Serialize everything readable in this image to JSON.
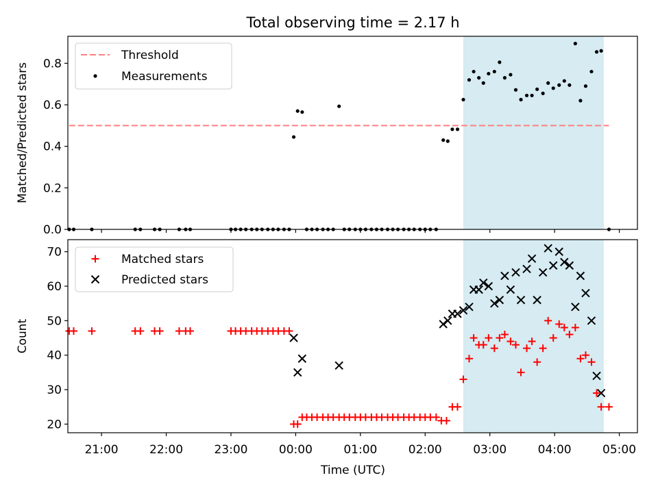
{
  "title": "Total observing time = 2.17 h",
  "xlabel": "Time (UTC)",
  "x_ticks": [
    {
      "label": "21:00",
      "hour": 21
    },
    {
      "label": "22:00",
      "hour": 22
    },
    {
      "label": "23:00",
      "hour": 23
    },
    {
      "label": "00:00",
      "hour": 24
    },
    {
      "label": "01:00",
      "hour": 25
    },
    {
      "label": "02:00",
      "hour": 26
    },
    {
      "label": "03:00",
      "hour": 27
    },
    {
      "label": "04:00",
      "hour": 28
    },
    {
      "label": "05:00",
      "hour": 29
    }
  ],
  "x_range_hours": [
    20.48,
    29.28
  ],
  "observing_window_hours": [
    26.59,
    28.76
  ],
  "highlight_color": "#add8e6",
  "chart_data": [
    {
      "type": "scatter",
      "ylabel": "Matched/Predicted stars",
      "ylim": [
        0,
        0.93
      ],
      "yticks": [
        "0.0",
        "0.2",
        "0.4",
        "0.6",
        "0.8"
      ],
      "legend_position": "upper-left",
      "threshold": {
        "name": "Threshold",
        "value": 0.5,
        "x_range": [
          20.5,
          28.84
        ],
        "color": "#ff7f7f",
        "style": "dashed"
      },
      "series": [
        {
          "name": "Measurements",
          "color": "#000000",
          "marker": "dot",
          "points": [
            [
              20.5,
              0
            ],
            [
              20.57,
              0
            ],
            [
              20.85,
              0
            ],
            [
              21.52,
              0
            ],
            [
              21.6,
              0
            ],
            [
              21.82,
              0
            ],
            [
              21.9,
              0
            ],
            [
              22.2,
              0
            ],
            [
              22.3,
              0
            ],
            [
              22.37,
              0
            ],
            [
              23.0,
              0
            ],
            [
              23.07,
              0
            ],
            [
              23.15,
              0
            ],
            [
              23.23,
              0
            ],
            [
              23.32,
              0
            ],
            [
              23.4,
              0
            ],
            [
              23.48,
              0
            ],
            [
              23.57,
              0
            ],
            [
              23.65,
              0
            ],
            [
              23.73,
              0
            ],
            [
              23.82,
              0
            ],
            [
              23.9,
              0
            ],
            [
              23.97,
              0.445
            ],
            [
              24.03,
              0.57
            ],
            [
              24.1,
              0.565
            ],
            [
              24.17,
              0
            ],
            [
              24.25,
              0
            ],
            [
              24.33,
              0
            ],
            [
              24.42,
              0
            ],
            [
              24.5,
              0
            ],
            [
              24.58,
              0
            ],
            [
              24.67,
              0.593
            ],
            [
              24.75,
              0
            ],
            [
              24.83,
              0
            ],
            [
              24.92,
              0
            ],
            [
              25.0,
              0
            ],
            [
              25.08,
              0
            ],
            [
              25.17,
              0
            ],
            [
              25.25,
              0
            ],
            [
              25.33,
              0
            ],
            [
              25.42,
              0
            ],
            [
              25.5,
              0
            ],
            [
              25.58,
              0
            ],
            [
              25.67,
              0
            ],
            [
              25.75,
              0
            ],
            [
              25.83,
              0
            ],
            [
              25.92,
              0
            ],
            [
              26.0,
              0
            ],
            [
              26.08,
              0
            ],
            [
              26.17,
              0
            ],
            [
              26.28,
              0.43
            ],
            [
              26.35,
              0.425
            ],
            [
              26.42,
              0.482
            ],
            [
              26.5,
              0.482
            ],
            [
              26.59,
              0.625
            ],
            [
              26.68,
              0.72
            ],
            [
              26.75,
              0.76
            ],
            [
              26.83,
              0.73
            ],
            [
              26.9,
              0.705
            ],
            [
              26.98,
              0.75
            ],
            [
              27.07,
              0.76
            ],
            [
              27.15,
              0.805
            ],
            [
              27.23,
              0.73
            ],
            [
              27.32,
              0.745
            ],
            [
              27.4,
              0.672
            ],
            [
              27.48,
              0.625
            ],
            [
              27.57,
              0.645
            ],
            [
              27.65,
              0.645
            ],
            [
              27.73,
              0.675
            ],
            [
              27.82,
              0.655
            ],
            [
              27.9,
              0.705
            ],
            [
              27.98,
              0.68
            ],
            [
              28.07,
              0.695
            ],
            [
              28.15,
              0.715
            ],
            [
              28.23,
              0.695
            ],
            [
              28.32,
              0.895
            ],
            [
              28.4,
              0.62
            ],
            [
              28.48,
              0.69
            ],
            [
              28.57,
              0.76
            ],
            [
              28.65,
              0.855
            ],
            [
              28.72,
              0.86
            ],
            [
              28.84,
              0
            ]
          ]
        }
      ]
    },
    {
      "type": "scatter",
      "ylabel": "Count",
      "ylim": [
        17.5,
        73.5
      ],
      "yticks": [
        "20",
        "30",
        "40",
        "50",
        "60",
        "70"
      ],
      "legend_position": "upper-left",
      "series": [
        {
          "name": "Matched stars",
          "color": "#ff0000",
          "marker": "plus",
          "points": [
            [
              20.5,
              47
            ],
            [
              20.57,
              47
            ],
            [
              20.85,
              47
            ],
            [
              21.52,
              47
            ],
            [
              21.6,
              47
            ],
            [
              21.82,
              47
            ],
            [
              21.9,
              47
            ],
            [
              22.2,
              47
            ],
            [
              22.3,
              47
            ],
            [
              22.37,
              47
            ],
            [
              23.0,
              47
            ],
            [
              23.07,
              47
            ],
            [
              23.15,
              47
            ],
            [
              23.23,
              47
            ],
            [
              23.32,
              47
            ],
            [
              23.4,
              47
            ],
            [
              23.48,
              47
            ],
            [
              23.57,
              47
            ],
            [
              23.65,
              47
            ],
            [
              23.73,
              47
            ],
            [
              23.82,
              47
            ],
            [
              23.9,
              47
            ],
            [
              23.97,
              20
            ],
            [
              24.03,
              20
            ],
            [
              24.1,
              22
            ],
            [
              24.17,
              22
            ],
            [
              24.25,
              22
            ],
            [
              24.33,
              22
            ],
            [
              24.42,
              22
            ],
            [
              24.5,
              22
            ],
            [
              24.58,
              22
            ],
            [
              24.67,
              22
            ],
            [
              24.75,
              22
            ],
            [
              24.83,
              22
            ],
            [
              24.92,
              22
            ],
            [
              25.0,
              22
            ],
            [
              25.08,
              22
            ],
            [
              25.17,
              22
            ],
            [
              25.25,
              22
            ],
            [
              25.33,
              22
            ],
            [
              25.42,
              22
            ],
            [
              25.5,
              22
            ],
            [
              25.58,
              22
            ],
            [
              25.67,
              22
            ],
            [
              25.75,
              22
            ],
            [
              25.83,
              22
            ],
            [
              25.92,
              22
            ],
            [
              26.0,
              22
            ],
            [
              26.08,
              22
            ],
            [
              26.17,
              22
            ],
            [
              26.25,
              21
            ],
            [
              26.33,
              21
            ],
            [
              26.42,
              25
            ],
            [
              26.5,
              25
            ],
            [
              26.59,
              33
            ],
            [
              26.68,
              39
            ],
            [
              26.75,
              45
            ],
            [
              26.83,
              43
            ],
            [
              26.9,
              43
            ],
            [
              26.98,
              45
            ],
            [
              27.07,
              42
            ],
            [
              27.15,
              45
            ],
            [
              27.23,
              46
            ],
            [
              27.32,
              44
            ],
            [
              27.4,
              43
            ],
            [
              27.48,
              35
            ],
            [
              27.57,
              42
            ],
            [
              27.65,
              44
            ],
            [
              27.73,
              38
            ],
            [
              27.82,
              42
            ],
            [
              27.9,
              50
            ],
            [
              27.98,
              45
            ],
            [
              28.07,
              49
            ],
            [
              28.15,
              48
            ],
            [
              28.23,
              46
            ],
            [
              28.32,
              48
            ],
            [
              28.4,
              39
            ],
            [
              28.48,
              40
            ],
            [
              28.57,
              38
            ],
            [
              28.65,
              29
            ],
            [
              28.72,
              25
            ],
            [
              28.84,
              25
            ]
          ]
        },
        {
          "name": "Predicted stars",
          "color": "#000000",
          "marker": "x",
          "points": [
            [
              23.97,
              45
            ],
            [
              24.03,
              35
            ],
            [
              24.1,
              39
            ],
            [
              24.67,
              37
            ],
            [
              26.28,
              49
            ],
            [
              26.35,
              50
            ],
            [
              26.42,
              52
            ],
            [
              26.5,
              52
            ],
            [
              26.59,
              53
            ],
            [
              26.68,
              54
            ],
            [
              26.75,
              59
            ],
            [
              26.83,
              59
            ],
            [
              26.9,
              61
            ],
            [
              26.98,
              60
            ],
            [
              27.07,
              55
            ],
            [
              27.15,
              56
            ],
            [
              27.23,
              63
            ],
            [
              27.32,
              59
            ],
            [
              27.4,
              64
            ],
            [
              27.48,
              56
            ],
            [
              27.57,
              65
            ],
            [
              27.65,
              68
            ],
            [
              27.73,
              56
            ],
            [
              27.82,
              64
            ],
            [
              27.9,
              71
            ],
            [
              27.98,
              66
            ],
            [
              28.07,
              70
            ],
            [
              28.15,
              67
            ],
            [
              28.23,
              66
            ],
            [
              28.32,
              54
            ],
            [
              28.4,
              63
            ],
            [
              28.48,
              58
            ],
            [
              28.57,
              50
            ],
            [
              28.65,
              34
            ],
            [
              28.72,
              29
            ]
          ]
        }
      ]
    }
  ]
}
